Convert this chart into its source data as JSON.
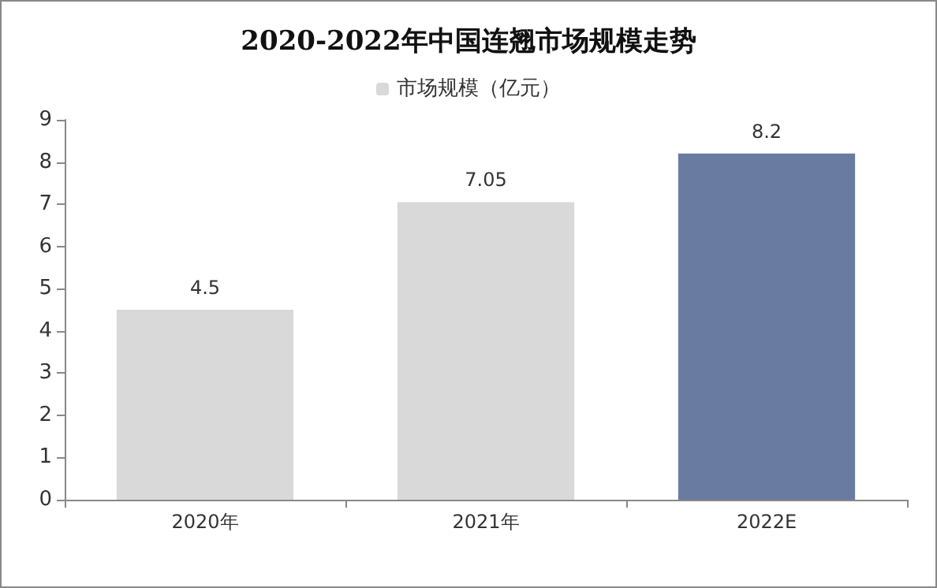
{
  "chart_data": {
    "type": "bar",
    "title": "2020-2022年中国连翘市场规模走势",
    "categories": [
      "2020年",
      "2021年",
      "2022E"
    ],
    "series": [
      {
        "name": "市场规模（亿元）",
        "color": "#d9d9d9",
        "colors": [
          "#d9d9d9",
          "#d9d9d9",
          "#6a7ba2"
        ],
        "values": [
          4.5,
          7.05,
          8.2
        ]
      }
    ],
    "ylim": [
      0,
      9
    ],
    "yticks": [
      0,
      1,
      2,
      3,
      4,
      5,
      6,
      7,
      8,
      9
    ],
    "grid": false,
    "legend": "top",
    "data_labels": true
  }
}
